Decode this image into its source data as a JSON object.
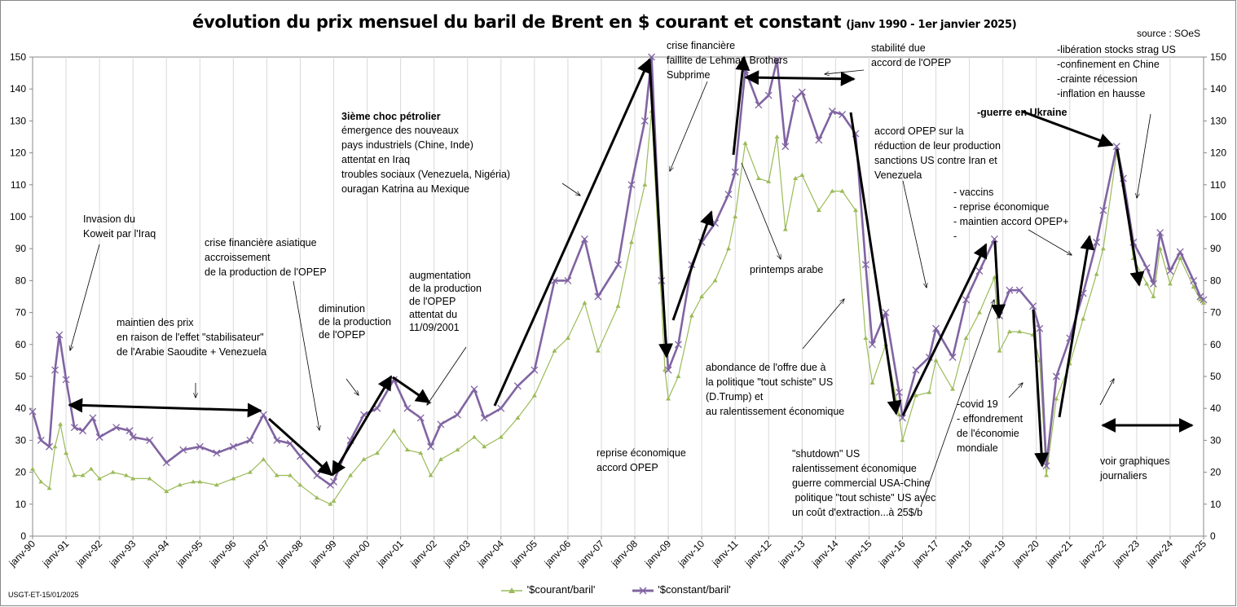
{
  "title": "évolution du prix mensuel du baril de Brent en $ courant et constant",
  "subtitle": "(janv 1990 -  1er janvier 2025)",
  "source": "source : SOeS",
  "footnote": "USGT-ET-15/01/2025",
  "colors": {
    "courant": "#9bbb59",
    "constant": "#8064a2",
    "arrow": "#000000",
    "grid": "#d9d9d9"
  },
  "chart_data": {
    "type": "line",
    "x_labels": [
      "janv-90",
      "janv-91",
      "janv-92",
      "janv-93",
      "janv-94",
      "janv-95",
      "janv-96",
      "janv-97",
      "janv-98",
      "janv-99",
      "janv-00",
      "janv-01",
      "janv-02",
      "janv-03",
      "janv-04",
      "janv-05",
      "janv-06",
      "janv-07",
      "janv-08",
      "janv-09",
      "janv-10",
      "janv-11",
      "janv-12",
      "janv-13",
      "janv-14",
      "janv-15",
      "janv-16",
      "janv-17",
      "janv-18",
      "janv-19",
      "janv-20",
      "janv-21",
      "janv-22",
      "janv-23",
      "janv-24",
      "janv-25"
    ],
    "y_ticks": [
      0,
      10,
      20,
      30,
      40,
      50,
      60,
      70,
      80,
      90,
      100,
      110,
      120,
      130,
      140,
      150
    ],
    "ylim": [
      0,
      150
    ],
    "y2lim": [
      0,
      150
    ],
    "grid": "vertical-major",
    "legend_position": "bottom",
    "series": [
      {
        "name": "'$courant/baril'",
        "color": "#9bbb59",
        "marker": "triangle",
        "points": [
          [
            1990.0,
            21
          ],
          [
            1990.25,
            17
          ],
          [
            1990.5,
            15
          ],
          [
            1990.67,
            28
          ],
          [
            1990.83,
            35
          ],
          [
            1991.0,
            26
          ],
          [
            1991.25,
            19
          ],
          [
            1991.5,
            19
          ],
          [
            1991.75,
            21
          ],
          [
            1992.0,
            18
          ],
          [
            1992.4,
            20
          ],
          [
            1992.8,
            19
          ],
          [
            1993.0,
            18
          ],
          [
            1993.5,
            18
          ],
          [
            1994.0,
            14
          ],
          [
            1994.4,
            16
          ],
          [
            1994.8,
            17
          ],
          [
            1995.0,
            17
          ],
          [
            1995.5,
            16
          ],
          [
            1996.0,
            18
          ],
          [
            1996.5,
            20
          ],
          [
            1996.9,
            24
          ],
          [
            1997.3,
            19
          ],
          [
            1997.7,
            19
          ],
          [
            1998.0,
            16
          ],
          [
            1998.5,
            12
          ],
          [
            1998.9,
            10
          ],
          [
            1999.0,
            11
          ],
          [
            1999.5,
            19
          ],
          [
            1999.9,
            24
          ],
          [
            2000.3,
            26
          ],
          [
            2000.8,
            33
          ],
          [
            2001.2,
            27
          ],
          [
            2001.6,
            26
          ],
          [
            2001.9,
            19
          ],
          [
            2002.2,
            24
          ],
          [
            2002.7,
            27
          ],
          [
            2003.2,
            31
          ],
          [
            2003.5,
            28
          ],
          [
            2004.0,
            31
          ],
          [
            2004.5,
            37
          ],
          [
            2005.0,
            44
          ],
          [
            2005.6,
            58
          ],
          [
            2006.0,
            62
          ],
          [
            2006.5,
            73
          ],
          [
            2006.9,
            58
          ],
          [
            2007.5,
            72
          ],
          [
            2007.9,
            92
          ],
          [
            2008.3,
            110
          ],
          [
            2008.5,
            133
          ],
          [
            2008.9,
            52
          ],
          [
            2009.0,
            43
          ],
          [
            2009.3,
            50
          ],
          [
            2009.7,
            69
          ],
          [
            2010.0,
            75
          ],
          [
            2010.4,
            80
          ],
          [
            2010.8,
            90
          ],
          [
            2011.0,
            100
          ],
          [
            2011.3,
            123
          ],
          [
            2011.7,
            112
          ],
          [
            2012.0,
            111
          ],
          [
            2012.25,
            125
          ],
          [
            2012.5,
            96
          ],
          [
            2012.8,
            112
          ],
          [
            2013.0,
            113
          ],
          [
            2013.5,
            102
          ],
          [
            2013.9,
            108
          ],
          [
            2014.2,
            108
          ],
          [
            2014.6,
            102
          ],
          [
            2014.9,
            62
          ],
          [
            2015.1,
            48
          ],
          [
            2015.5,
            60
          ],
          [
            2015.9,
            38
          ],
          [
            2016.0,
            30
          ],
          [
            2016.4,
            44
          ],
          [
            2016.8,
            45
          ],
          [
            2017.0,
            55
          ],
          [
            2017.5,
            46
          ],
          [
            2017.9,
            62
          ],
          [
            2018.3,
            70
          ],
          [
            2018.75,
            81
          ],
          [
            2018.9,
            58
          ],
          [
            2019.2,
            64
          ],
          [
            2019.5,
            64
          ],
          [
            2019.9,
            63
          ],
          [
            2020.1,
            55
          ],
          [
            2020.3,
            19
          ],
          [
            2020.6,
            43
          ],
          [
            2021.0,
            54
          ],
          [
            2021.4,
            68
          ],
          [
            2021.8,
            82
          ],
          [
            2022.0,
            90
          ],
          [
            2022.4,
            120
          ],
          [
            2022.6,
            110
          ],
          [
            2022.9,
            87
          ],
          [
            2023.3,
            79
          ],
          [
            2023.5,
            75
          ],
          [
            2023.7,
            90
          ],
          [
            2024.0,
            79
          ],
          [
            2024.3,
            87
          ],
          [
            2024.7,
            78
          ],
          [
            2024.9,
            74
          ],
          [
            2025.0,
            73
          ]
        ]
      },
      {
        "name": "'$constant/baril'",
        "color": "#8064a2",
        "marker": "x",
        "points": [
          [
            1990.0,
            39
          ],
          [
            1990.25,
            30
          ],
          [
            1990.5,
            28
          ],
          [
            1990.67,
            52
          ],
          [
            1990.8,
            63
          ],
          [
            1991.0,
            49
          ],
          [
            1991.25,
            34
          ],
          [
            1991.5,
            33
          ],
          [
            1991.8,
            37
          ],
          [
            1992.0,
            31
          ],
          [
            1992.5,
            34
          ],
          [
            1992.9,
            33
          ],
          [
            1993.0,
            31
          ],
          [
            1993.5,
            30
          ],
          [
            1994.0,
            23
          ],
          [
            1994.5,
            27
          ],
          [
            1995.0,
            28
          ],
          [
            1995.5,
            26
          ],
          [
            1996.0,
            28
          ],
          [
            1996.5,
            30
          ],
          [
            1996.9,
            38
          ],
          [
            1997.3,
            30
          ],
          [
            1997.7,
            29
          ],
          [
            1998.0,
            25
          ],
          [
            1998.5,
            19
          ],
          [
            1998.9,
            16
          ],
          [
            1999.0,
            17
          ],
          [
            1999.5,
            30
          ],
          [
            1999.9,
            38
          ],
          [
            2000.3,
            40
          ],
          [
            2000.8,
            49
          ],
          [
            2001.2,
            40
          ],
          [
            2001.6,
            37
          ],
          [
            2001.9,
            28
          ],
          [
            2002.2,
            35
          ],
          [
            2002.7,
            38
          ],
          [
            2003.2,
            46
          ],
          [
            2003.5,
            37
          ],
          [
            2004.0,
            40
          ],
          [
            2004.5,
            47
          ],
          [
            2005.0,
            52
          ],
          [
            2005.6,
            80
          ],
          [
            2006.0,
            80
          ],
          [
            2006.5,
            93
          ],
          [
            2006.9,
            75
          ],
          [
            2007.5,
            85
          ],
          [
            2007.9,
            110
          ],
          [
            2008.3,
            130
          ],
          [
            2008.5,
            150
          ],
          [
            2008.8,
            80
          ],
          [
            2009.0,
            52
          ],
          [
            2009.3,
            60
          ],
          [
            2009.7,
            85
          ],
          [
            2010.0,
            92
          ],
          [
            2010.4,
            98
          ],
          [
            2010.8,
            107
          ],
          [
            2011.0,
            114
          ],
          [
            2011.3,
            146
          ],
          [
            2011.7,
            135
          ],
          [
            2012.0,
            138
          ],
          [
            2012.25,
            149
          ],
          [
            2012.5,
            122
          ],
          [
            2012.8,
            137
          ],
          [
            2013.0,
            139
          ],
          [
            2013.5,
            124
          ],
          [
            2013.9,
            133
          ],
          [
            2014.2,
            132
          ],
          [
            2014.6,
            126
          ],
          [
            2014.9,
            85
          ],
          [
            2015.1,
            60
          ],
          [
            2015.5,
            70
          ],
          [
            2015.9,
            45
          ],
          [
            2016.0,
            37
          ],
          [
            2016.4,
            52
          ],
          [
            2016.8,
            56
          ],
          [
            2017.0,
            65
          ],
          [
            2017.5,
            56
          ],
          [
            2017.9,
            74
          ],
          [
            2018.3,
            83
          ],
          [
            2018.75,
            93
          ],
          [
            2018.9,
            69
          ],
          [
            2019.2,
            77
          ],
          [
            2019.5,
            77
          ],
          [
            2019.9,
            72
          ],
          [
            2020.1,
            65
          ],
          [
            2020.3,
            22
          ],
          [
            2020.6,
            50
          ],
          [
            2021.0,
            62
          ],
          [
            2021.4,
            76
          ],
          [
            2021.8,
            92
          ],
          [
            2022.0,
            102
          ],
          [
            2022.4,
            122
          ],
          [
            2022.6,
            112
          ],
          [
            2022.9,
            92
          ],
          [
            2023.3,
            84
          ],
          [
            2023.5,
            79
          ],
          [
            2023.7,
            95
          ],
          [
            2024.0,
            83
          ],
          [
            2024.3,
            89
          ],
          [
            2024.7,
            80
          ],
          [
            2024.9,
            75
          ],
          [
            2025.0,
            74
          ]
        ]
      }
    ],
    "annotations": [
      {
        "lines": [
          "Invasion du",
          "Koweit par l'Iraq"
        ],
        "bold": false
      },
      {
        "lines": [
          "maintien des prix",
          "en raison de l'effet \"stabilisateur\"",
          "de l'Arabie Saoudite + Venezuela"
        ],
        "bold": false
      },
      {
        "lines": [
          "crise financière asiatique",
          "accroissement",
          "de la production de l'OPEP"
        ],
        "bold": false
      },
      {
        "lines": [
          "diminution",
          "de la production",
          "de l'OPEP"
        ],
        "bold": false
      },
      {
        "lines": [
          "augmentation",
          "de la production",
          "de l'OPEP",
          "attentat du",
          "11/09/2001"
        ],
        "bold": false
      },
      {
        "lines": [
          "3ième choc pétrolier"
        ],
        "bold": true
      },
      {
        "lines": [
          "émergence des nouveaux",
          "pays industriels (Chine, Inde)",
          "attentat en Iraq",
          "troubles  sociaux (Venezuela, Nigéria)",
          "ouragan Katrina au Mexique"
        ],
        "bold": false
      },
      {
        "lines": [
          "crise financière",
          "faillite de Lehman Brothers",
          "Subprime"
        ],
        "bold": false
      },
      {
        "lines": [
          "stabilité due",
          "accord de l'OPEP"
        ],
        "bold": false
      },
      {
        "lines": [
          "printemps arabe"
        ],
        "bold": false
      },
      {
        "lines": [
          "reprise économique",
          "accord OPEP"
        ],
        "bold": false
      },
      {
        "lines": [
          "abondance de l'offre due à",
          "la politique \"tout schiste\" US",
          "(D.Trump) et",
          "au ralentissement économique"
        ],
        "bold": false
      },
      {
        "lines": [
          "accord OPEP sur la",
          "réduction  de leur production",
          "sanctions US contre Iran et",
          "Venezuela"
        ],
        "bold": false
      },
      {
        "lines": [
          "\"shutdown\" US",
          "ralentissement économique",
          "guerre commercial USA-Chine",
          " politique \"tout schiste\" US avec",
          "un coût d'extraction...à 25$/b"
        ],
        "bold": false
      },
      {
        "lines": [
          "- vaccins",
          "- reprise économique",
          "- maintien accord OPEP+",
          "-"
        ],
        "bold": false
      },
      {
        "lines": [
          "-covid 19",
          "- effondrement",
          "de l'économie",
          "mondiale"
        ],
        "bold": false
      },
      {
        "lines": [
          "-libération  stocks strag US",
          "-confinement en Chine",
          "-crainte récession",
          "-inflation en hausse"
        ],
        "bold": false
      },
      {
        "lines": [
          "-guerre en Ukraine"
        ],
        "bold": true
      },
      {
        "lines": [
          "voir graphiques",
          "journaliers"
        ],
        "bold": false
      }
    ]
  }
}
